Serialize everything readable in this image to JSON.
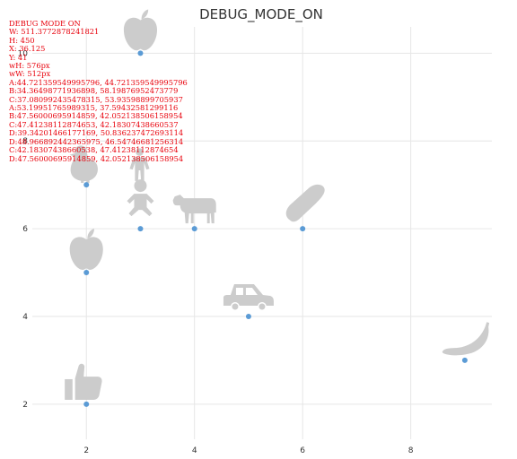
{
  "chart_data": {
    "type": "scatter",
    "title": "DEBUG_MODE_ON",
    "xlabel": "",
    "ylabel": "",
    "xlim": [
      1,
      9.5
    ],
    "ylim": [
      1.2,
      10.6
    ],
    "xticks": [
      2,
      4,
      6,
      8
    ],
    "yticks": [
      2,
      4,
      6,
      8,
      10
    ],
    "xtick_labels": [
      "2",
      "4",
      "6",
      "8"
    ],
    "ytick_labels": [
      "2",
      "4",
      "6",
      "8",
      "10"
    ],
    "grid": true,
    "legend": "none",
    "marker_color": "#5b9bd5",
    "icon_color": "#cccccc",
    "points": [
      {
        "x": 3,
        "y": 10,
        "icon": "apple-icon"
      },
      {
        "x": 2,
        "y": 7,
        "icon": "chicken-icon"
      },
      {
        "x": 3,
        "y": 7,
        "icon": "person-icon"
      },
      {
        "x": 3,
        "y": 6,
        "icon": "baby-icon"
      },
      {
        "x": 4,
        "y": 6,
        "icon": "cow-icon"
      },
      {
        "x": 6,
        "y": 6,
        "icon": "bread-icon"
      },
      {
        "x": 2,
        "y": 5,
        "icon": "apple-icon"
      },
      {
        "x": 5,
        "y": 4,
        "icon": "car-icon"
      },
      {
        "x": 9,
        "y": 3,
        "icon": "banana-icon"
      },
      {
        "x": 2,
        "y": 2,
        "icon": "thumbs-up-icon"
      }
    ]
  },
  "debug": {
    "lines": [
      "DEBUG MODE ON",
      "W: 511.3772878241821",
      "H: 450",
      "X: 36.125",
      "Y: 41",
      "wH: 576px",
      "wW: 512px",
      "A:44.721359549995796, 44.721359549995796",
      "B:34.36498771936898, 58.19876952473779",
      "C:37.080992435478315, 53.93598899705937",
      "A:53.19951765989315, 37.59432581299116",
      "B:47.56000695914859, 42.052138506158954",
      "C:47.41238112874653, 42.18307438660537",
      "D:39.34201466177169, 50.836237472693114",
      "D:48.966892442365975, 46.54746681256314",
      "C:42.18307438660538, 47.41238112874654",
      "D:47.56000695914859, 42.052138506158954"
    ]
  }
}
